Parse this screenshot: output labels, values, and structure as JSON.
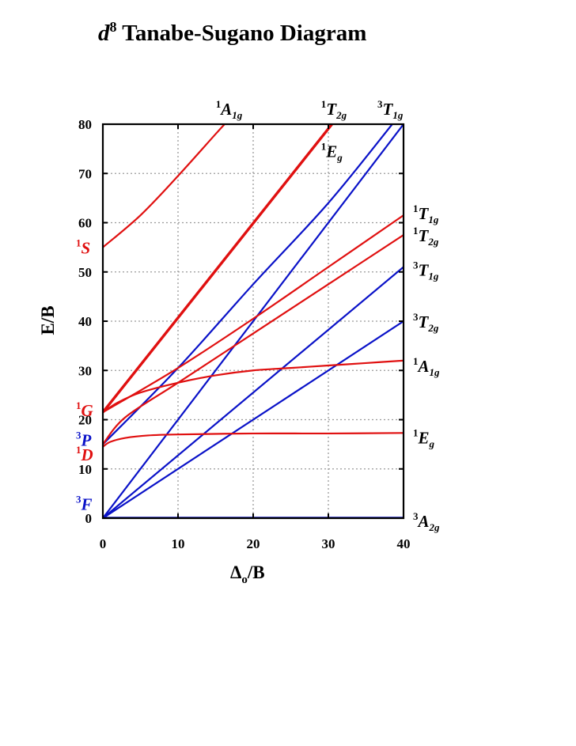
{
  "chart_data": {
    "type": "line",
    "title": {
      "prefix": "d",
      "superscript": "8",
      "rest": " Tanabe-Sugano Diagram"
    },
    "xlabel": {
      "main": "Δ",
      "sub": "o",
      "rest": "/B"
    },
    "ylabel": "E/B",
    "xlim": [
      0,
      40
    ],
    "ylim": [
      0,
      80
    ],
    "xticks": [
      "0",
      "10",
      "20",
      "30",
      "40"
    ],
    "yticks": [
      "0",
      "10",
      "20",
      "30",
      "40",
      "50",
      "60",
      "70",
      "80"
    ],
    "grid": true,
    "colors": {
      "singlet": "#e01010",
      "triplet": "#0a12c8"
    },
    "free_ion_terms": [
      {
        "mult": "1",
        "letter": "S",
        "color": "singlet",
        "E": 55
      },
      {
        "mult": "1",
        "letter": "G",
        "color": "singlet",
        "E": 22
      },
      {
        "mult": "3",
        "letter": "P",
        "color": "triplet",
        "E": 16
      },
      {
        "mult": "1",
        "letter": "D",
        "color": "singlet",
        "E": 13
      },
      {
        "mult": "3",
        "letter": "F",
        "color": "triplet",
        "E": 3
      }
    ],
    "top_labels": [
      {
        "id": "top-1a1g",
        "mult": "1",
        "letter": "A",
        "sub": "1g",
        "x": 16.5
      },
      {
        "id": "top-1t2g",
        "mult": "1",
        "letter": "T",
        "sub": "2g",
        "x": 30.5
      },
      {
        "id": "top-3t1g",
        "mult": "3",
        "letter": "T",
        "sub": "1g",
        "x": 38
      }
    ],
    "inner_labels": [
      {
        "id": "inner-1eg",
        "mult": "1",
        "letter": "E",
        "sub": "g",
        "x": 30.5,
        "y": 74
      }
    ],
    "right_labels": [
      {
        "id": "right-1t1g",
        "mult": "1",
        "letter": "T",
        "sub": "1g",
        "y": 62
      },
      {
        "id": "right-1t2g",
        "mult": "1",
        "letter": "T",
        "sub": "2g",
        "y": 57.5
      },
      {
        "id": "right-3t1g",
        "mult": "3",
        "letter": "T",
        "sub": "1g",
        "y": 50.5
      },
      {
        "id": "right-3t2g",
        "mult": "3",
        "letter": "T",
        "sub": "2g",
        "y": 40
      },
      {
        "id": "right-1a1g",
        "mult": "1",
        "letter": "A",
        "sub": "1g",
        "y": 31
      },
      {
        "id": "right-1eg",
        "mult": "1",
        "letter": "E",
        "sub": "g",
        "y": 16.5
      },
      {
        "id": "right-3a2g",
        "mult": "3",
        "letter": "A",
        "sub": "2g",
        "y": -0.5
      }
    ],
    "series": [
      {
        "color": "singlet",
        "width": 2.2,
        "x": [
          0,
          5,
          10,
          15,
          16.5
        ],
        "y": [
          55,
          61.5,
          69.5,
          78,
          80.5
        ]
      },
      {
        "color": "singlet",
        "width": 3.4,
        "x": [
          0,
          31
        ],
        "y": [
          21.5,
          81
        ]
      },
      {
        "color": "triplet",
        "width": 2.2,
        "x": [
          0,
          10,
          20,
          30,
          38.5
        ],
        "y": [
          15,
          30.5,
          47.5,
          64,
          80
        ]
      },
      {
        "color": "triplet",
        "width": 2.2,
        "x": [
          0,
          40
        ],
        "y": [
          0,
          80
        ]
      },
      {
        "color": "singlet",
        "width": 2.2,
        "x": [
          0,
          10,
          20,
          30,
          40
        ],
        "y": [
          21.5,
          30.5,
          40.5,
          51,
          61.5
        ]
      },
      {
        "color": "singlet",
        "width": 2.2,
        "x": [
          0,
          3,
          10,
          20,
          30,
          40
        ],
        "y": [
          15,
          20.5,
          27.5,
          37.5,
          47.5,
          57.5
        ]
      },
      {
        "color": "triplet",
        "width": 2.2,
        "x": [
          0,
          40
        ],
        "y": [
          0,
          51
        ]
      },
      {
        "color": "triplet",
        "width": 2.2,
        "x": [
          0,
          40
        ],
        "y": [
          0,
          40
        ]
      },
      {
        "color": "singlet",
        "width": 2.2,
        "x": [
          0,
          2,
          5,
          10,
          15,
          20,
          25,
          30,
          35,
          40
        ],
        "y": [
          21.5,
          23.5,
          25.5,
          27.5,
          29,
          30,
          30.5,
          31,
          31.5,
          32
        ]
      },
      {
        "color": "singlet",
        "width": 2.2,
        "x": [
          0,
          1,
          3,
          6,
          10,
          20,
          30,
          40
        ],
        "y": [
          14.5,
          15.5,
          16.3,
          16.8,
          17,
          17.2,
          17.2,
          17.3
        ]
      },
      {
        "color": "triplet",
        "width": 3.4,
        "x": [
          0,
          40
        ],
        "y": [
          0,
          0
        ]
      }
    ]
  }
}
